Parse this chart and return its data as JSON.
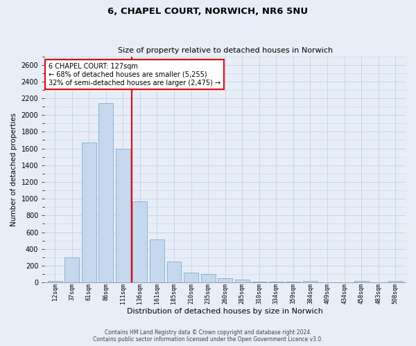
{
  "title_line1": "6, CHAPEL COURT, NORWICH, NR6 5NU",
  "title_line2": "Size of property relative to detached houses in Norwich",
  "xlabel": "Distribution of detached houses by size in Norwich",
  "ylabel": "Number of detached properties",
  "bar_labels": [
    "12sqm",
    "37sqm",
    "61sqm",
    "86sqm",
    "111sqm",
    "136sqm",
    "161sqm",
    "185sqm",
    "210sqm",
    "235sqm",
    "260sqm",
    "285sqm",
    "310sqm",
    "334sqm",
    "359sqm",
    "384sqm",
    "409sqm",
    "434sqm",
    "458sqm",
    "483sqm",
    "508sqm"
  ],
  "bar_values": [
    20,
    300,
    1670,
    2140,
    1600,
    970,
    510,
    245,
    120,
    100,
    50,
    30,
    10,
    5,
    5,
    15,
    3,
    3,
    15,
    3,
    15
  ],
  "bar_color": "#c5d8ed",
  "bar_edge_color": "#8ab4d4",
  "vline_color": "red",
  "annotation_text": "6 CHAPEL COURT: 127sqm\n← 68% of detached houses are smaller (5,255)\n32% of semi-detached houses are larger (2,475) →",
  "annotation_box_color": "white",
  "annotation_box_edge": "red",
  "ylim": [
    0,
    2700
  ],
  "yticks": [
    0,
    200,
    400,
    600,
    800,
    1000,
    1200,
    1400,
    1600,
    1800,
    2000,
    2200,
    2400,
    2600
  ],
  "grid_color": "#c8d4e8",
  "footer_line1": "Contains HM Land Registry data © Crown copyright and database right 2024.",
  "footer_line2": "Contains public sector information licensed under the Open Government Licence v3.0.",
  "background_color": "#e8eef8",
  "title1_fontsize": 9.5,
  "title2_fontsize": 8,
  "ylabel_fontsize": 7.5,
  "xlabel_fontsize": 8,
  "ytick_fontsize": 7,
  "xtick_fontsize": 6,
  "footer_fontsize": 5.5
}
